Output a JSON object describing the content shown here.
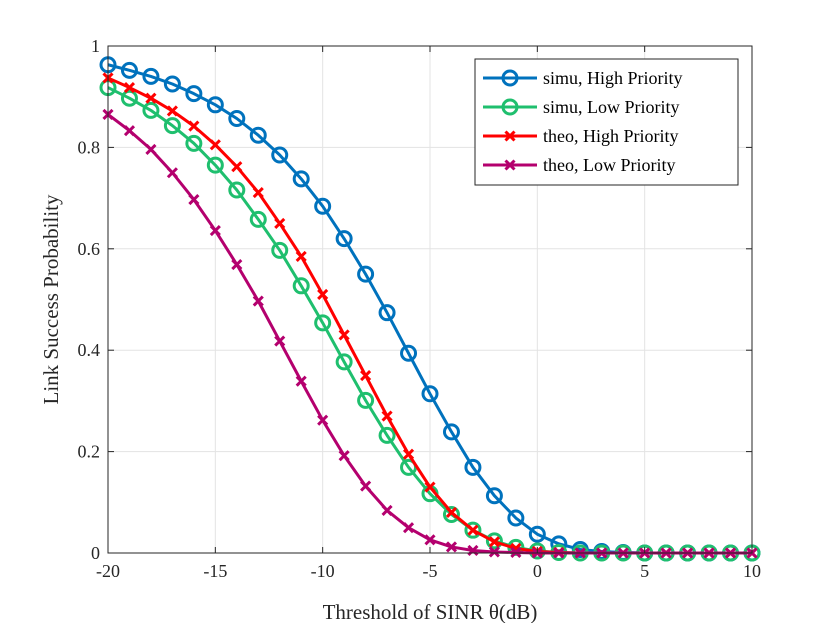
{
  "chart_data": {
    "type": "line",
    "title": "",
    "xlabel": "Threshold of SINR θ(dB)",
    "ylabel": "Link Success Probability",
    "xlim": [
      -20,
      10
    ],
    "ylim": [
      0,
      1
    ],
    "xticks": [
      -20,
      -15,
      -10,
      -5,
      0,
      5,
      10
    ],
    "xtick_labels": [
      "-20",
      "-15",
      "-10",
      "-5",
      "0",
      "5",
      "10"
    ],
    "yticks": [
      0,
      0.2,
      0.4,
      0.6,
      0.8,
      1
    ],
    "ytick_labels": [
      "0",
      "0.2",
      "0.4",
      "0.6",
      "0.8",
      "1"
    ],
    "grid": true,
    "legend_position": "top-right",
    "x": [
      -20,
      -19,
      -18,
      -17,
      -16,
      -15,
      -14,
      -13,
      -12,
      -11,
      -10,
      -9,
      -8,
      -7,
      -6,
      -5,
      -4,
      -3,
      -2,
      -1,
      0,
      1,
      2,
      3,
      4,
      5,
      6,
      7,
      8,
      9,
      10
    ],
    "series": [
      {
        "name": "simu, High Priority",
        "color": "#0072BD",
        "marker": "circle",
        "values": [
          0.963,
          0.952,
          0.94,
          0.925,
          0.906,
          0.884,
          0.857,
          0.824,
          0.785,
          0.738,
          0.684,
          0.62,
          0.55,
          0.474,
          0.394,
          0.314,
          0.239,
          0.169,
          0.113,
          0.069,
          0.037,
          0.018,
          0.007,
          0.003,
          0.001,
          0.0,
          0.0,
          0.0,
          0.0,
          0.0,
          0.0
        ]
      },
      {
        "name": "simu, Low Priority",
        "color": "#1FBF6E",
        "marker": "circle",
        "values": [
          0.918,
          0.897,
          0.873,
          0.843,
          0.808,
          0.765,
          0.716,
          0.658,
          0.597,
          0.527,
          0.454,
          0.377,
          0.301,
          0.232,
          0.169,
          0.117,
          0.076,
          0.045,
          0.024,
          0.011,
          0.004,
          0.001,
          0.0,
          0.0,
          0.0,
          0.0,
          0.0,
          0.0,
          0.0,
          0.0,
          0.0
        ]
      },
      {
        "name": "theo, High Priority",
        "color": "#FF0000",
        "marker": "x",
        "values": [
          0.937,
          0.918,
          0.897,
          0.872,
          0.842,
          0.805,
          0.762,
          0.711,
          0.65,
          0.585,
          0.51,
          0.43,
          0.35,
          0.27,
          0.195,
          0.13,
          0.08,
          0.045,
          0.022,
          0.009,
          0.003,
          0.001,
          0.0,
          0.0,
          0.0,
          0.0,
          0.0,
          0.0,
          0.0,
          0.0,
          0.0
        ]
      },
      {
        "name": "theo, Low Priority",
        "color": "#B4006E",
        "marker": "x",
        "values": [
          0.865,
          0.833,
          0.796,
          0.75,
          0.697,
          0.636,
          0.569,
          0.497,
          0.418,
          0.339,
          0.262,
          0.192,
          0.132,
          0.084,
          0.05,
          0.026,
          0.012,
          0.005,
          0.002,
          0.001,
          0.0,
          0.0,
          0.0,
          0.0,
          0.0,
          0.0,
          0.0,
          0.0,
          0.0,
          0.0,
          0.0
        ]
      }
    ]
  }
}
